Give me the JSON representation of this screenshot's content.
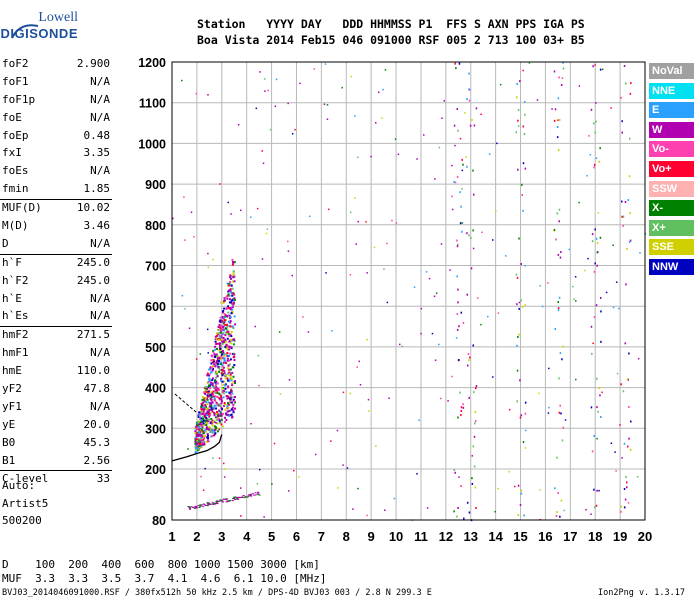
{
  "logo": {
    "top": "Lowell",
    "bottom": "DIGISONDE"
  },
  "header": {
    "line1": "Station   YYYY DAY   DDD HHMMSS P1  FFS S AXN PPS IGA PS",
    "line2": "Boa Vista 2014 Feb15 046 091000 RSF 005 2 713 100 03+ B5"
  },
  "params": [
    {
      "name": "foF2",
      "value": "2.900"
    },
    {
      "name": "foF1",
      "value": "N/A"
    },
    {
      "name": "foF1p",
      "value": "N/A"
    },
    {
      "name": "foE",
      "value": "N/A"
    },
    {
      "name": "foEp",
      "value": "0.48"
    },
    {
      "name": "fxI",
      "value": "3.35"
    },
    {
      "name": "foEs",
      "value": "N/A"
    },
    {
      "name": "fmin",
      "value": "1.85"
    },
    {
      "name": "MUF(D)",
      "value": "10.02"
    },
    {
      "name": "M(D)",
      "value": "3.46"
    },
    {
      "name": "D",
      "value": "N/A"
    },
    {
      "name": "h`F",
      "value": "245.0"
    },
    {
      "name": "h`F2",
      "value": "245.0"
    },
    {
      "name": "h`E",
      "value": "N/A"
    },
    {
      "name": "h`Es",
      "value": "N/A"
    },
    {
      "name": "hmF2",
      "value": "271.5"
    },
    {
      "name": "hmF1",
      "value": "N/A"
    },
    {
      "name": "hmE",
      "value": "110.0"
    },
    {
      "name": "yF2",
      "value": "47.8"
    },
    {
      "name": "yF1",
      "value": "N/A"
    },
    {
      "name": "yE",
      "value": "20.0"
    },
    {
      "name": "B0",
      "value": "45.3"
    },
    {
      "name": "B1",
      "value": "2.56"
    },
    {
      "name": "C-level",
      "value": "33"
    }
  ],
  "auto": {
    "label": "Auto:",
    "artist": "Artist5",
    "version": "500200"
  },
  "legend": [
    {
      "label": "NoVal",
      "color": "#a0a0a0"
    },
    {
      "label": "NNE",
      "color": "#00e0f0"
    },
    {
      "label": "E",
      "color": "#2aa0ff"
    },
    {
      "label": "W",
      "color": "#b000b0"
    },
    {
      "label": "Vo-",
      "color": "#ff40b0"
    },
    {
      "label": "Vo+",
      "color": "#ff0030"
    },
    {
      "label": "SSW",
      "color": "#ffb0b0"
    },
    {
      "label": "X-",
      "color": "#008000"
    },
    {
      "label": "X+",
      "color": "#60c060"
    },
    {
      "label": "SSE",
      "color": "#d0d000"
    },
    {
      "label": "NNW",
      "color": "#0000c0"
    }
  ],
  "table": {
    "row1": "D    100  200  400  600  800 1000 1500 3000 [km]",
    "row2": "MUF  3.3  3.3  3.5  3.7  4.1  4.6  6.1 10.0 [MHz]"
  },
  "footer_left": "BVJ03_2014046091000.RSF / 380fx512h 50 kHz 2.5 km / DPS-4D BVJ03 003 / 2.8 N 299.3 E",
  "footer_right": "Ion2Png v. 1.3.17",
  "chart_data": {
    "type": "scatter",
    "xlabel": "",
    "ylabel": "",
    "x_ticks": [
      1,
      2,
      3,
      4,
      5,
      6,
      7,
      8,
      9,
      10,
      11,
      12,
      13,
      14,
      15,
      16,
      17,
      18,
      19,
      20
    ],
    "y_ticks": [
      80,
      200,
      300,
      400,
      500,
      600,
      700,
      800,
      900,
      1000,
      1100,
      1200
    ],
    "xlim": [
      1,
      20
    ],
    "ylim": [
      80,
      1200
    ],
    "grid": true,
    "trace": {
      "name": "",
      "x": [
        1.0,
        1.6,
        2.0,
        2.4,
        2.7,
        2.9,
        3.0
      ],
      "y": [
        220,
        230,
        238,
        245,
        255,
        265,
        285
      ]
    }
  }
}
